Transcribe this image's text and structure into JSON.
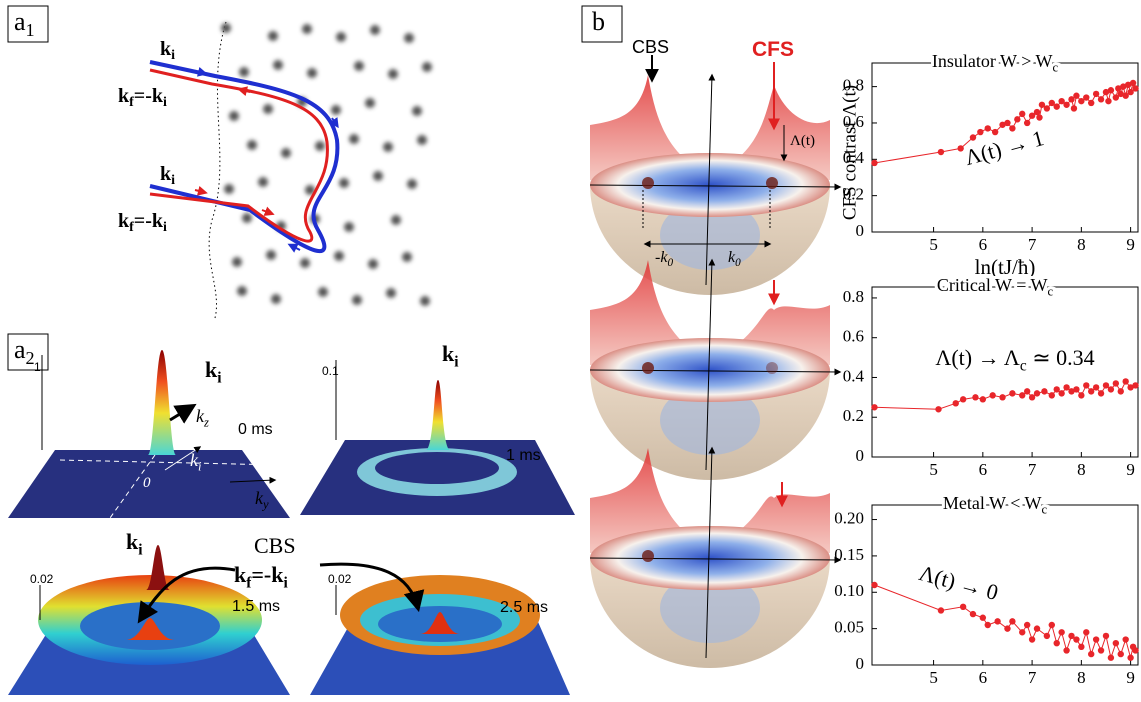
{
  "annotations": {
    "panel_a1": [
      "a",
      "1"
    ],
    "panel_a2": [
      "a",
      "2"
    ],
    "panel_b": [
      "b"
    ],
    "a1_ki_top": [
      "k",
      "i"
    ],
    "a1_kf_top": [
      "k",
      "f",
      "=-k",
      "i"
    ],
    "a1_ki_bot": [
      "k",
      "i"
    ],
    "a1_kf_bot": [
      "k",
      "f",
      "=-k",
      "i"
    ],
    "a2_ax1": [
      "1"
    ],
    "a2_ki_0": [
      "k",
      "i"
    ],
    "a2_kz": [
      "k",
      "z"
    ],
    "a2_t0": [
      "0 ms"
    ],
    "a2_ki_arrow": [
      "k",
      "i"
    ],
    "a2_zero": [
      "0"
    ],
    "a2_ky": [
      "k",
      "y"
    ],
    "a2_ax01": [
      "0.1"
    ],
    "a2_ki_1": [
      "k",
      "i"
    ],
    "a2_t1": [
      "1 ms"
    ],
    "a2_ax002a": [
      "0.02"
    ],
    "a2_ki_15": [
      "k",
      "i"
    ],
    "a2_cbs": [
      "CBS"
    ],
    "a2_kf": [
      "k",
      "f",
      "=-k",
      "i"
    ],
    "a2_t15": [
      "1.5 ms"
    ],
    "a2_ax002b": [
      "0.02"
    ],
    "a2_t25": [
      "2.5 ms"
    ],
    "b_cbs": [
      "CBS"
    ],
    "b_cfs": [
      "CFS"
    ],
    "b_lambda": [
      "Λ(t)"
    ],
    "b_mk0": [
      "-k",
      "0"
    ],
    "b_k0": [
      "k",
      "0"
    ]
  },
  "chart_data": [
    {
      "type": "line",
      "title": [
        "Insulator W > W",
        "c"
      ],
      "annotation": [
        "Λ(t) → 1"
      ],
      "ylabel": "CFS contrast Λ(t)",
      "xlabel": "ln(tJ/ħ)",
      "color": "#e8262b",
      "x": [
        3.8,
        5.15,
        5.55,
        5.8,
        5.95,
        6.1,
        6.25,
        6.4,
        6.5,
        6.6,
        6.7,
        6.8,
        6.9,
        7.0,
        7.1,
        7.15,
        7.2,
        7.3,
        7.4,
        7.5,
        7.6,
        7.7,
        7.8,
        7.85,
        7.9,
        8.0,
        8.1,
        8.2,
        8.3,
        8.4,
        8.5,
        8.55,
        8.6,
        8.7,
        8.75,
        8.8,
        8.85,
        8.9,
        8.95,
        9.0,
        9.05,
        9.1
      ],
      "values": [
        0.38,
        0.44,
        0.46,
        0.52,
        0.55,
        0.57,
        0.55,
        0.59,
        0.6,
        0.57,
        0.62,
        0.65,
        0.6,
        0.64,
        0.66,
        0.63,
        0.7,
        0.68,
        0.71,
        0.69,
        0.72,
        0.7,
        0.73,
        0.68,
        0.75,
        0.72,
        0.74,
        0.71,
        0.76,
        0.73,
        0.77,
        0.72,
        0.78,
        0.74,
        0.79,
        0.76,
        0.8,
        0.75,
        0.81,
        0.77,
        0.82,
        0.79
      ],
      "xlim": [
        3.75,
        9.15
      ],
      "xticks": [
        5,
        6,
        7,
        8,
        9
      ],
      "ylim": [
        0,
        0.93
      ],
      "yticks": [
        0,
        0.2,
        0.4,
        0.6,
        0.8
      ]
    },
    {
      "type": "line",
      "title": [
        "Critical W = W",
        "c"
      ],
      "annotation": [
        "Λ(t) → Λ",
        "c",
        " ≃ 0.34"
      ],
      "color": "#e8262b",
      "x": [
        3.8,
        5.1,
        5.45,
        5.6,
        5.85,
        6.0,
        6.2,
        6.4,
        6.6,
        6.8,
        6.9,
        7.0,
        7.1,
        7.25,
        7.4,
        7.5,
        7.6,
        7.7,
        7.8,
        7.9,
        8.0,
        8.1,
        8.2,
        8.3,
        8.4,
        8.5,
        8.6,
        8.7,
        8.8,
        8.9,
        9.0,
        9.1
      ],
      "values": [
        0.25,
        0.24,
        0.27,
        0.29,
        0.3,
        0.29,
        0.31,
        0.3,
        0.32,
        0.31,
        0.33,
        0.3,
        0.32,
        0.33,
        0.31,
        0.34,
        0.32,
        0.35,
        0.33,
        0.34,
        0.31,
        0.36,
        0.33,
        0.35,
        0.32,
        0.36,
        0.34,
        0.37,
        0.33,
        0.38,
        0.35,
        0.36
      ],
      "xlim": [
        3.75,
        9.15
      ],
      "xticks": [
        5,
        6,
        7,
        8,
        9
      ],
      "ylim": [
        0,
        0.855
      ],
      "yticks": [
        0,
        0.2,
        0.4,
        0.6,
        0.8
      ]
    },
    {
      "type": "line",
      "title": [
        "Metal W < W",
        "c"
      ],
      "annotation": [
        "Λ(t) → 0"
      ],
      "color": "#e8262b",
      "x": [
        3.8,
        5.15,
        5.6,
        5.8,
        6.0,
        6.1,
        6.3,
        6.5,
        6.6,
        6.8,
        6.9,
        7.0,
        7.1,
        7.3,
        7.4,
        7.5,
        7.6,
        7.7,
        7.8,
        7.9,
        8.0,
        8.1,
        8.2,
        8.3,
        8.4,
        8.5,
        8.6,
        8.7,
        8.8,
        8.9,
        9.0,
        9.05,
        9.1
      ],
      "values": [
        0.11,
        0.075,
        0.08,
        0.07,
        0.065,
        0.055,
        0.06,
        0.05,
        0.06,
        0.045,
        0.055,
        0.035,
        0.05,
        0.04,
        0.055,
        0.03,
        0.045,
        0.02,
        0.04,
        0.035,
        0.025,
        0.045,
        0.015,
        0.035,
        0.02,
        0.04,
        0.01,
        0.03,
        0.015,
        0.035,
        0.01,
        0.025,
        0.02
      ],
      "xlim": [
        3.75,
        9.15
      ],
      "xticks": [
        5,
        6,
        7,
        8,
        9
      ],
      "ylim": [
        0,
        0.22
      ],
      "yticks": [
        0,
        0.05,
        {
          "value": 0.1,
          "label": "0.10"
        },
        0.15,
        {
          "value": 0.2,
          "label": "0.20"
        }
      ]
    }
  ]
}
